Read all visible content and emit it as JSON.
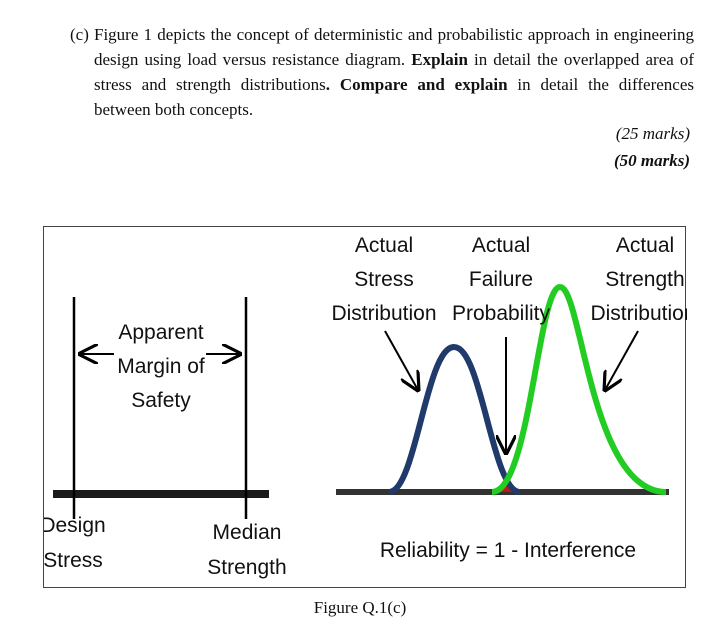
{
  "question": {
    "label": "(c)",
    "line_start": "Figure 1 depicts the concept of deterministic and probabilistic approach in engineering design using load versus resistance diagram. ",
    "bold_explain": "Explain",
    "mid_text": " in detail the overlapped area of stress and strength distributions",
    "dot": ".",
    "bold_compare": " Compare and explain",
    "end_text": " in detail the differences between both concepts."
  },
  "marks": {
    "first": "(25 marks)",
    "second": "(50 marks)"
  },
  "figure": {
    "left_panel": {
      "margin_label": [
        "Apparent",
        "Margin of",
        "Safety"
      ],
      "design_stress": [
        "Design",
        "Stress"
      ],
      "median_strength": [
        "Median",
        "Strength"
      ]
    },
    "right_panel": {
      "stress_label": [
        "Actual",
        "Stress",
        "Distribution"
      ],
      "failure_label": [
        "Actual",
        "Failure",
        "Probability"
      ],
      "strength_label": [
        "Actual",
        "Strength",
        "Distribution"
      ],
      "reliability_eq": "Reliability = 1 - Interference"
    },
    "colors": {
      "stress_curve": "#1f3a6b",
      "strength_curve": "#22cc22",
      "overlap": "#cc1111",
      "base_line": "#333333"
    },
    "caption": "Figure Q.1(c)"
  }
}
